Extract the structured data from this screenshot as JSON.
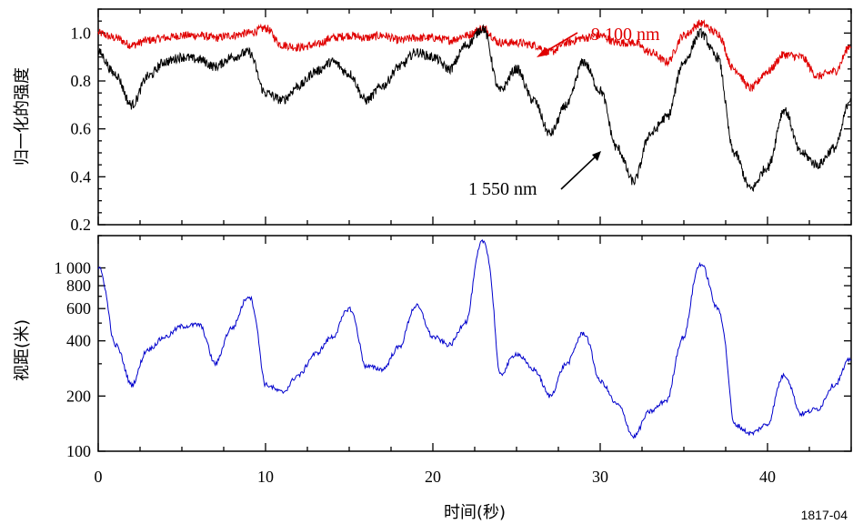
{
  "figure_id": "1817-04",
  "colors": {
    "red": "#e00000",
    "black": "#000000",
    "blue": "#0000cc"
  },
  "chart_data": [
    {
      "type": "line",
      "ylabel": "归一化的强度",
      "xlim": [
        0,
        45
      ],
      "ylim": [
        0.2,
        1.1
      ],
      "yticks": [
        "0.2",
        "0.4",
        "0.6",
        "0.8",
        "1.0"
      ],
      "annotations": [
        "9 100 nm",
        "1 550 nm"
      ],
      "x": [
        0,
        1,
        2,
        3,
        4,
        5,
        6,
        7,
        8,
        9,
        10,
        11,
        12,
        13,
        14,
        15,
        16,
        17,
        18,
        19,
        20,
        21,
        22,
        23,
        24,
        25,
        26,
        27,
        28,
        29,
        30,
        31,
        32,
        33,
        34,
        35,
        36,
        37,
        38,
        39,
        40,
        41,
        42,
        43,
        44,
        45
      ],
      "series": [
        {
          "name": "9 100 nm",
          "color": "red",
          "values": [
            1.0,
            0.98,
            0.95,
            0.97,
            0.98,
            0.99,
            0.99,
            0.98,
            0.99,
            1.0,
            1.02,
            0.95,
            0.94,
            0.95,
            0.98,
            0.99,
            0.98,
            0.99,
            0.97,
            0.98,
            0.98,
            0.97,
            0.99,
            1.02,
            0.96,
            0.96,
            0.95,
            0.92,
            0.96,
            0.98,
            0.99,
            0.96,
            0.96,
            0.92,
            0.88,
            0.99,
            1.04,
            1.0,
            0.85,
            0.77,
            0.84,
            0.91,
            0.9,
            0.82,
            0.84,
            0.95
          ]
        },
        {
          "name": "1 550 nm",
          "color": "black",
          "values": [
            0.92,
            0.83,
            0.7,
            0.82,
            0.88,
            0.9,
            0.89,
            0.86,
            0.9,
            0.92,
            0.75,
            0.72,
            0.78,
            0.84,
            0.88,
            0.83,
            0.72,
            0.78,
            0.86,
            0.92,
            0.9,
            0.85,
            0.95,
            1.02,
            0.76,
            0.85,
            0.72,
            0.58,
            0.7,
            0.88,
            0.76,
            0.52,
            0.38,
            0.58,
            0.65,
            0.88,
            1.0,
            0.9,
            0.5,
            0.35,
            0.44,
            0.68,
            0.5,
            0.45,
            0.52,
            0.73
          ]
        }
      ]
    },
    {
      "type": "line",
      "ylabel": "视距(米)",
      "xlabel": "时间(秒)",
      "yscale": "log",
      "xlim": [
        0,
        45
      ],
      "ylim": [
        100,
        1500
      ],
      "xticks": [
        "0",
        "10",
        "20",
        "30",
        "40"
      ],
      "yticks": [
        "100",
        "200",
        "400",
        "600",
        "800",
        "1 000"
      ],
      "x": [
        0,
        1,
        2,
        3,
        4,
        5,
        6,
        7,
        8,
        9,
        10,
        11,
        12,
        13,
        14,
        15,
        16,
        17,
        18,
        19,
        20,
        21,
        22,
        23,
        24,
        25,
        26,
        27,
        28,
        29,
        30,
        31,
        32,
        33,
        34,
        35,
        36,
        37,
        38,
        39,
        40,
        41,
        42,
        43,
        44,
        45
      ],
      "series": [
        {
          "name": "",
          "color": "blue",
          "values": [
            1000,
            380,
            230,
            360,
            420,
            480,
            490,
            300,
            470,
            700,
            230,
            210,
            260,
            340,
            420,
            600,
            290,
            280,
            370,
            620,
            420,
            380,
            510,
            1400,
            260,
            340,
            280,
            200,
            300,
            440,
            240,
            180,
            120,
            165,
            190,
            420,
            1050,
            600,
            140,
            125,
            140,
            260,
            160,
            170,
            230,
            320
          ]
        }
      ]
    }
  ]
}
